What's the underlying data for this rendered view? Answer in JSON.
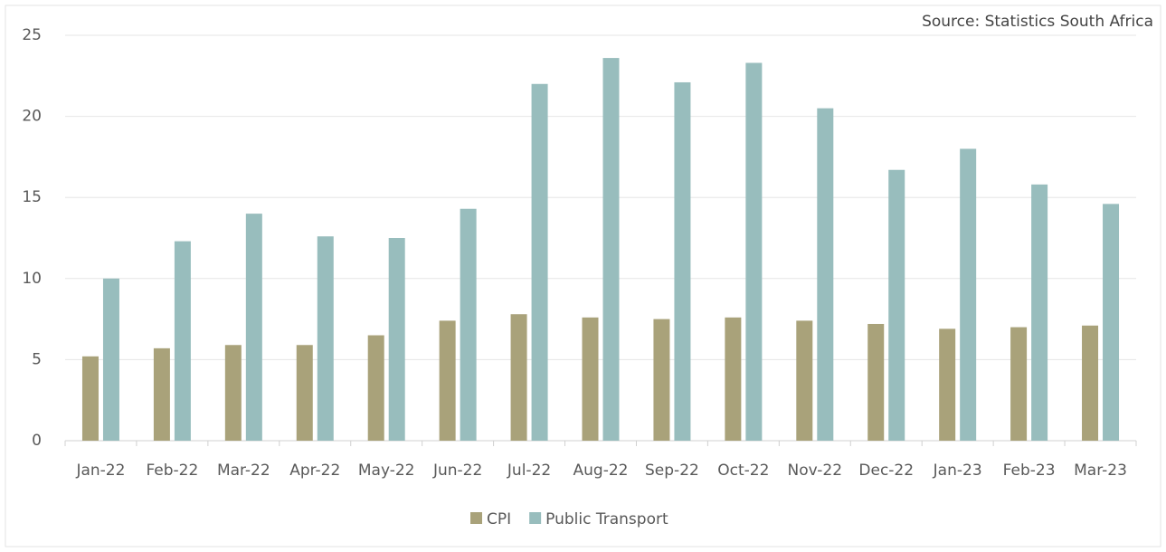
{
  "chart_data": {
    "type": "bar",
    "source": "Source: Statistics South Africa",
    "categories": [
      "Jan-22",
      "Feb-22",
      "Mar-22",
      "Apr-22",
      "May-22",
      "Jun-22",
      "Jul-22",
      "Aug-22",
      "Sep-22",
      "Oct-22",
      "Nov-22",
      "Dec-22",
      "Jan-23",
      "Feb-23",
      "Mar-23"
    ],
    "series": [
      {
        "name": "CPI",
        "color": "#a9a27a",
        "values": [
          5.2,
          5.7,
          5.9,
          5.9,
          6.5,
          7.4,
          7.8,
          7.6,
          7.5,
          7.6,
          7.4,
          7.2,
          6.9,
          7.0,
          7.1
        ]
      },
      {
        "name": "Public Transport",
        "color": "#98bdbd",
        "values": [
          10.0,
          12.3,
          14.0,
          12.6,
          12.5,
          14.3,
          22.0,
          23.6,
          22.1,
          23.3,
          20.5,
          16.7,
          18.0,
          15.8,
          14.6
        ]
      }
    ],
    "ylim": [
      0,
      25
    ],
    "yticks": [
      0,
      5,
      10,
      15,
      20,
      25
    ],
    "grid": true,
    "legend": "bottom"
  }
}
